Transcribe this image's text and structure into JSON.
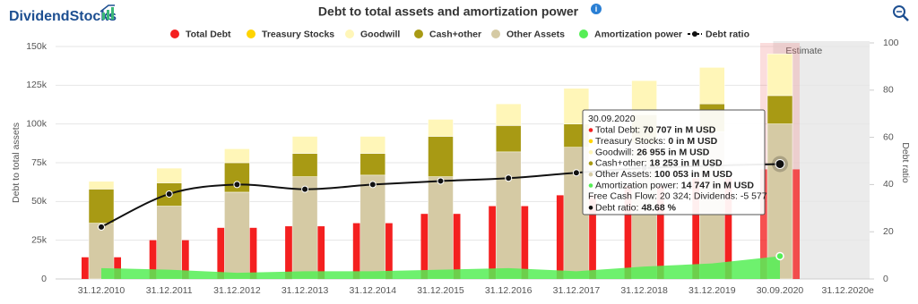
{
  "brand": "DividendStocks",
  "chart_data": {
    "type": "bar",
    "title": "Debt to total assets and amortization power",
    "ylabel": "Debt to total assets",
    "y2label": "Debt ratio",
    "estimate_label": "Estimate",
    "categories": [
      "31.12.2010",
      "31.12.2011",
      "31.12.2012",
      "31.12.2013",
      "31.12.2014",
      "31.12.2015",
      "31.12.2016",
      "31.12.2017",
      "31.12.2018",
      "31.12.2019",
      "30.09.2020",
      "31.12.2020e"
    ],
    "ylim": [
      0,
      150000
    ],
    "yticks": [
      0,
      {
        "value": 25000,
        "label": "25k"
      },
      {
        "value": 50000,
        "label": "50k"
      },
      {
        "value": 75000,
        "label": "75k"
      },
      {
        "value": 100000,
        "label": "100k"
      },
      {
        "value": 125000,
        "label": "125k"
      },
      {
        "value": 150000,
        "label": "150k"
      }
    ],
    "y2lim": [
      0,
      100
    ],
    "y2ticks": [
      0,
      20,
      40,
      60,
      80,
      100
    ],
    "grid": true,
    "series": [
      {
        "name": "Total Debt",
        "type": "column",
        "color": "#f42020",
        "values": [
          14000,
          25000,
          33000,
          34000,
          36000,
          42000,
          47000,
          54000,
          60000,
          65000,
          70707,
          null
        ]
      },
      {
        "name": "Treasury Stocks",
        "type": "stacked",
        "color": "#ffd400",
        "values": [
          0,
          0,
          0,
          0,
          0,
          0,
          0,
          0,
          0,
          0,
          0,
          null
        ]
      },
      {
        "name": "Goodwill",
        "type": "stacked",
        "color": "#fff6b8",
        "values": [
          5000,
          9500,
          9000,
          11000,
          11000,
          11000,
          14000,
          23000,
          22000,
          23500,
          26955,
          null
        ]
      },
      {
        "name": "Cash+other",
        "type": "stacked",
        "color": "#a89a14",
        "values": [
          22000,
          15000,
          19000,
          15000,
          14000,
          26000,
          17000,
          15000,
          18000,
          18000,
          18253,
          null
        ]
      },
      {
        "name": "Other Assets",
        "type": "stacked",
        "color": "#d5caa4",
        "values": [
          36000,
          47000,
          56000,
          66000,
          67000,
          66000,
          82000,
          85000,
          88000,
          95000,
          100053,
          null
        ]
      },
      {
        "name": "Amortization power",
        "type": "area",
        "color": "#55ee55",
        "values": [
          7000,
          6000,
          4000,
          5000,
          5000,
          6000,
          7000,
          5000,
          8000,
          10000,
          14747,
          null
        ]
      },
      {
        "name": "Debt ratio",
        "type": "line",
        "axis": "y2",
        "color": "#111111",
        "values": [
          22,
          36,
          40,
          38,
          40,
          41.5,
          42.7,
          45,
          47,
          48,
          48.68,
          null
        ]
      }
    ],
    "tooltip": {
      "title": "30.09.2020",
      "items": [
        {
          "label": "Total Debt:",
          "value": "70 707 in M USD"
        },
        {
          "label": "Treasury Stocks:",
          "value": "0 in M USD"
        },
        {
          "label": "Goodwill:",
          "value": "26 955 in M USD"
        },
        {
          "label": "Cash+other:",
          "value": "18 253 in M USD"
        },
        {
          "label": "Other Assets:",
          "value": "100 053 in M USD"
        },
        {
          "label": "Amortization power:",
          "value": "14 747 in M USD"
        },
        {
          "label": "Debt ratio:",
          "value": "48.68 %"
        }
      ],
      "note": "Free Cash Flow: 20 324; Dividends: -5 577"
    }
  }
}
